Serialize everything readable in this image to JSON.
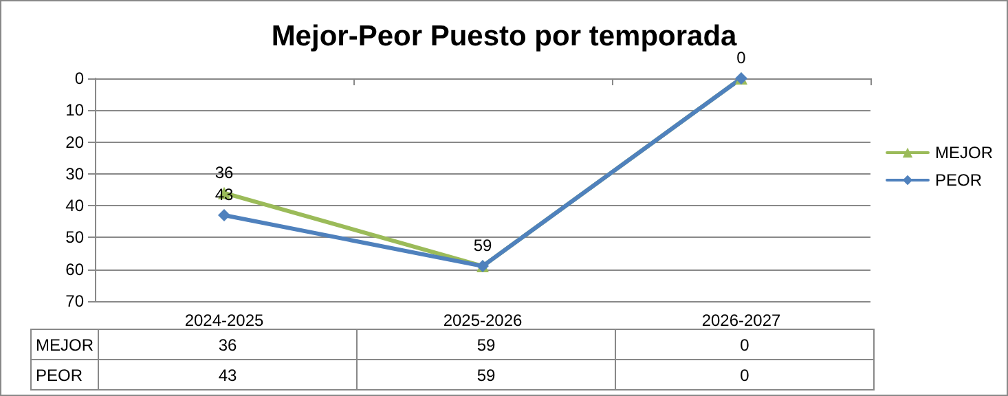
{
  "chart_data": {
    "type": "line",
    "title": "Mejor-Peor Puesto por temporada",
    "categories": [
      "2024-2025",
      "2025-2026",
      "2026-2027"
    ],
    "series": [
      {
        "name": "MEJOR",
        "color": "#9bbb59",
        "marker": "triangle",
        "values": [
          36,
          59,
          0
        ]
      },
      {
        "name": "PEOR",
        "color": "#4f81bd",
        "marker": "diamond",
        "values": [
          43,
          59,
          0
        ]
      }
    ],
    "annotations": [
      {
        "text": "36",
        "x": "2024-2025",
        "y": 36
      },
      {
        "text": "43",
        "x": "2024-2025",
        "y": 43
      },
      {
        "text": "59",
        "x": "2025-2026",
        "y": 59
      },
      {
        "text": "0",
        "x": "2026-2027",
        "y": 0
      }
    ],
    "ylim": [
      70,
      0
    ],
    "yticks": [
      0,
      10,
      20,
      30,
      40,
      50,
      60,
      70
    ],
    "grid": "y",
    "legend": "right",
    "data_labels": true
  }
}
